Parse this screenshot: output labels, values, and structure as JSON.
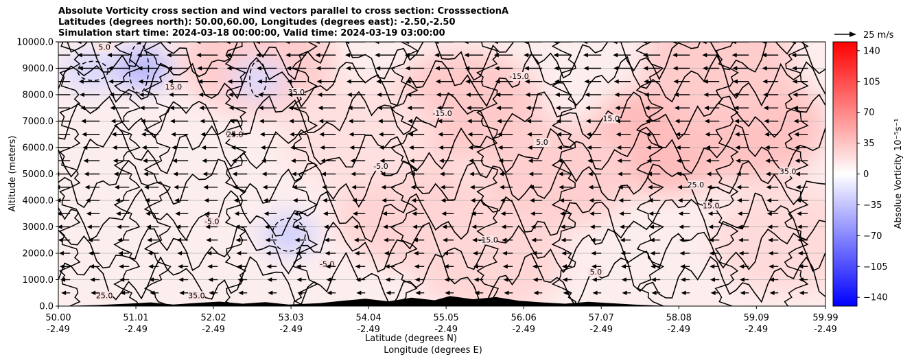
{
  "title_lines": [
    "Absolute Vorticity cross section and wind vectors parallel to cross section: CrosssectionA",
    "Latitudes (degrees north): 50.00,60.00, Longitudes (degrees east): -2.50,-2.50",
    "Simulation start time: 2024-03-18 00:00:00, Valid time: 2024-03-19 03:00:00"
  ],
  "quiver_key_label": "25 m/s",
  "chart_data": {
    "type": "heatmap",
    "description_free": true,
    "ylabel": "Altitude (meters)",
    "xlabel_lines": [
      "Latitude (degrees N)",
      "Longitude (degrees E)"
    ],
    "xlim": [
      50.0,
      59.99
    ],
    "ylim": [
      0.0,
      10000.0
    ],
    "y_ticks": [
      "0.0",
      "1000.0",
      "2000.0",
      "3000.0",
      "4000.0",
      "5000.0",
      "6000.0",
      "7000.0",
      "8000.0",
      "9000.0",
      "10000.0"
    ],
    "x_ticks": [
      {
        "lat": "50.00",
        "lon": "-2.49"
      },
      {
        "lat": "51.01",
        "lon": "-2.49"
      },
      {
        "lat": "52.02",
        "lon": "-2.49"
      },
      {
        "lat": "53.03",
        "lon": "-2.49"
      },
      {
        "lat": "54.04",
        "lon": "-2.49"
      },
      {
        "lat": "55.05",
        "lon": "-2.49"
      },
      {
        "lat": "56.06",
        "lon": "-2.49"
      },
      {
        "lat": "57.07",
        "lon": "-2.49"
      },
      {
        "lat": "58.08",
        "lon": "-2.49"
      },
      {
        "lat": "59.09",
        "lon": "-2.49"
      },
      {
        "lat": "59.99",
        "lon": "-2.49"
      }
    ],
    "grid": "horizontal",
    "colorbar": {
      "label": "Absolue Vorticity 10⁻⁵s⁻¹",
      "range": [
        -150,
        150
      ],
      "ticks": [
        "140",
        "105",
        "70",
        "35",
        "0",
        "−35",
        "−70",
        "−105",
        "−140"
      ],
      "cmap": "bwr"
    },
    "contour_labels": [
      "5.0",
      "15.0",
      "25.0",
      "35.0",
      "-5.0",
      "-15.0"
    ],
    "wind": {
      "direction": "toward decreasing latitude",
      "reference_speed_ms": 25
    },
    "heat_blobs": [
      {
        "lat": 55.3,
        "alt": 7600,
        "value": 32
      },
      {
        "lat": 57.9,
        "alt": 6300,
        "value": 40
      },
      {
        "lat": 59.0,
        "alt": 6800,
        "value": 36
      },
      {
        "lat": 58.6,
        "alt": 9200,
        "value": 30
      },
      {
        "lat": 56.5,
        "alt": 5000,
        "value": 28
      },
      {
        "lat": 54.6,
        "alt": 3500,
        "value": 26
      },
      {
        "lat": 55.6,
        "alt": 1800,
        "value": 24
      },
      {
        "lat": 52.6,
        "alt": 9300,
        "value": 30
      },
      {
        "lat": 53.9,
        "alt": 6500,
        "value": 18
      },
      {
        "lat": 59.5,
        "alt": 2500,
        "value": 22
      },
      {
        "lat": 51.1,
        "alt": 9000,
        "value": -45
      },
      {
        "lat": 50.4,
        "alt": 8900,
        "value": -25
      },
      {
        "lat": 53.0,
        "alt": 2700,
        "value": -28
      },
      {
        "lat": 52.6,
        "alt": 8600,
        "value": -22
      }
    ],
    "terrain": [
      [
        50.0,
        0
      ],
      [
        50.5,
        40
      ],
      [
        50.9,
        90
      ],
      [
        51.2,
        140
      ],
      [
        51.5,
        60
      ],
      [
        51.8,
        120
      ],
      [
        52.1,
        170
      ],
      [
        52.4,
        90
      ],
      [
        52.7,
        150
      ],
      [
        53.0,
        60
      ],
      [
        53.4,
        110
      ],
      [
        53.7,
        200
      ],
      [
        54.0,
        280
      ],
      [
        54.3,
        180
      ],
      [
        54.6,
        320
      ],
      [
        54.9,
        220
      ],
      [
        55.1,
        380
      ],
      [
        55.4,
        260
      ],
      [
        55.7,
        340
      ],
      [
        56.0,
        200
      ],
      [
        56.3,
        140
      ],
      [
        56.6,
        90
      ],
      [
        56.9,
        160
      ],
      [
        57.2,
        110
      ],
      [
        57.5,
        60
      ],
      [
        57.8,
        20
      ],
      [
        58.2,
        0
      ],
      [
        59.99,
        0
      ]
    ]
  }
}
